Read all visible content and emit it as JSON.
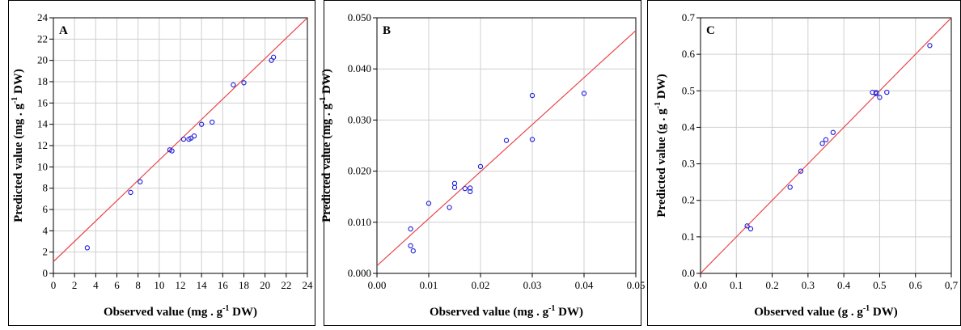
{
  "chart_data": [
    {
      "type": "scatter",
      "panel_label": "A",
      "xlabel": "Observed value (mg . g",
      "xlabel_sup": "-1",
      "xlabel_tail": " DW)",
      "ylabel": "Predicted value (mg . g",
      "ylabel_sup": "-1",
      "ylabel_tail": " DW)",
      "xlim": [
        0,
        24
      ],
      "ylim": [
        0,
        24
      ],
      "xticks": [
        0,
        2,
        4,
        6,
        8,
        10,
        12,
        14,
        16,
        18,
        20,
        22,
        24
      ],
      "yticks": [
        0,
        2,
        4,
        6,
        8,
        10,
        12,
        14,
        16,
        18,
        20,
        22,
        24
      ],
      "xtick_labels": [
        "0",
        "2",
        "4",
        "6",
        "8",
        "10",
        "12",
        "14",
        "16",
        "18",
        "20",
        "22",
        "24"
      ],
      "ytick_labels": [
        "0",
        "2",
        "4",
        "6",
        "8",
        "10",
        "12",
        "14",
        "16",
        "18",
        "20",
        "22",
        "24"
      ],
      "grid": true,
      "reference_line": [
        [
          0,
          1.1
        ],
        [
          24,
          24
        ]
      ],
      "x": [
        3.2,
        7.3,
        8.2,
        11.0,
        11.2,
        12.3,
        12.8,
        13.0,
        13.3,
        14.0,
        15.0,
        17.0,
        18.0,
        20.6,
        20.8
      ],
      "y": [
        2.4,
        7.6,
        8.6,
        11.6,
        11.5,
        12.6,
        12.6,
        12.7,
        12.9,
        14.0,
        14.2,
        17.7,
        17.9,
        20.0,
        20.3
      ],
      "marker_color": "#1a1adb",
      "line_color": "#e8474b"
    },
    {
      "type": "scatter",
      "panel_label": "B",
      "xlabel": "Observed value (mg . g",
      "xlabel_sup": "-1",
      "xlabel_tail": " DW)",
      "ylabel": "Predicted value (mg . g",
      "ylabel_sup": "-1",
      "ylabel_tail": " DW)",
      "xlim": [
        0,
        0.05
      ],
      "ylim": [
        0,
        0.05
      ],
      "xticks": [
        0,
        0.01,
        0.02,
        0.03,
        0.04,
        0.05
      ],
      "yticks": [
        0,
        0.01,
        0.02,
        0.03,
        0.04,
        0.05
      ],
      "xtick_labels": [
        "0.00",
        "0.01",
        "0.02",
        "0.03",
        "0.04",
        "0.05"
      ],
      "ytick_labels": [
        "0.000",
        "0.010",
        "0.020",
        "0.030",
        "0.040",
        "0.050"
      ],
      "grid": true,
      "reference_line": [
        [
          0,
          0.0015
        ],
        [
          0.05,
          0.0475
        ]
      ],
      "x": [
        0.0065,
        0.0065,
        0.007,
        0.01,
        0.014,
        0.015,
        0.015,
        0.017,
        0.018,
        0.018,
        0.02,
        0.025,
        0.03,
        0.03,
        0.04
      ],
      "y": [
        0.0087,
        0.0054,
        0.0044,
        0.0137,
        0.0129,
        0.0176,
        0.0168,
        0.0166,
        0.0167,
        0.016,
        0.0209,
        0.026,
        0.0348,
        0.0262,
        0.0352
      ],
      "marker_color": "#1a1adb",
      "line_color": "#e8474b"
    },
    {
      "type": "scatter",
      "panel_label": "C",
      "xlabel": "Observed value (g . g",
      "xlabel_sup": "-1",
      "xlabel_tail": " DW)",
      "ylabel": "Predicted value (g . g",
      "ylabel_sup": "-1",
      "ylabel_tail": " DW)",
      "xlim": [
        0,
        0.7
      ],
      "ylim": [
        0,
        0.7
      ],
      "xticks": [
        0,
        0.1,
        0.2,
        0.3,
        0.4,
        0.5,
        0.6,
        0.7
      ],
      "yticks": [
        0,
        0.1,
        0.2,
        0.3,
        0.4,
        0.5,
        0.6,
        0.7
      ],
      "xtick_labels": [
        "0.0",
        "0.1",
        "0.2",
        "0.3",
        "0.4",
        "0.5",
        "0.6",
        "0,7"
      ],
      "ytick_labels": [
        "0.0",
        "0.1",
        "0.2",
        "0.3",
        "0.4",
        "0.5",
        "0.6",
        "0.7"
      ],
      "grid": true,
      "reference_line": [
        [
          0,
          0
        ],
        [
          0.7,
          0.7
        ]
      ],
      "x": [
        0.13,
        0.14,
        0.25,
        0.28,
        0.34,
        0.35,
        0.37,
        0.48,
        0.49,
        0.49,
        0.5,
        0.52,
        0.64
      ],
      "y": [
        0.13,
        0.122,
        0.236,
        0.28,
        0.356,
        0.366,
        0.386,
        0.496,
        0.492,
        0.496,
        0.482,
        0.496,
        0.624
      ],
      "marker_color": "#1a1adb",
      "line_color": "#e8474b"
    }
  ]
}
